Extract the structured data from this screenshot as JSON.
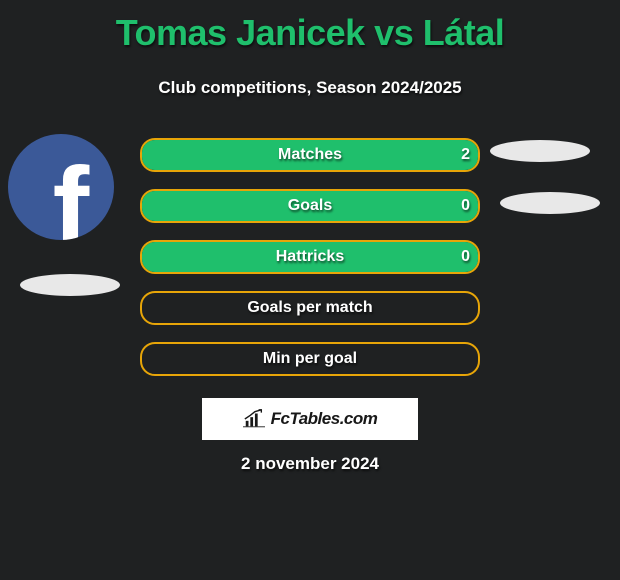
{
  "title": "Tomas Janicek vs Látal",
  "subtitle": "Club competitions, Season 2024/2025",
  "date": "2 november 2024",
  "brand": "FcTables.com",
  "colors": {
    "background": "#1f2122",
    "title": "#1fbf6c",
    "bar_border": "#e7a508",
    "bar_fill": "#1fbf6c",
    "text": "#ffffff",
    "brand_bg": "#ffffff",
    "brand_text": "#181818",
    "oval": "#e8e8e8",
    "avatar_bg": "#3b5998"
  },
  "chart": {
    "rows": [
      {
        "label": "Matches",
        "left_val": "2",
        "fill_pct": 100,
        "show_val": true
      },
      {
        "label": "Goals",
        "left_val": "0",
        "fill_pct": 100,
        "show_val": true
      },
      {
        "label": "Hattricks",
        "left_val": "0",
        "fill_pct": 100,
        "show_val": true
      },
      {
        "label": "Goals per match",
        "left_val": "",
        "fill_pct": 0,
        "show_val": false
      },
      {
        "label": "Min per goal",
        "left_val": "",
        "fill_pct": 0,
        "show_val": false
      }
    ]
  }
}
